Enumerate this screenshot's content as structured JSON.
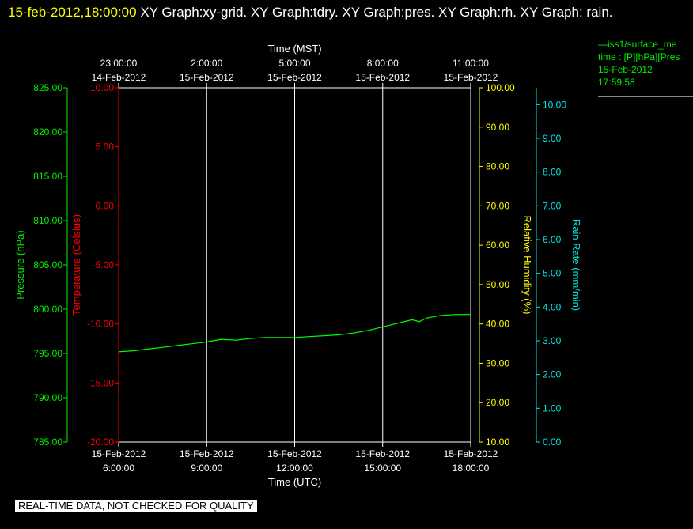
{
  "header": {
    "timestamp": "15-feb-2012,18:00:00",
    "graphs": "XY Graph:xy-grid.  XY Graph:tdry.  XY Graph:pres.  XY Graph:rh.  XY Graph: rain."
  },
  "legend": {
    "lines": [
      "—iss1/surface_me",
      "time : [P][hPa][Pres",
      "15-Feb-2012",
      "17:59:58"
    ]
  },
  "notice": "REAL-TIME DATA, NOT CHECKED FOR QUALITY",
  "colors": {
    "pressure": "#00ee00",
    "temperature": "#ff0000",
    "humidity": "#ffff00",
    "rain": "#00e5e5",
    "grid": "#ffffff",
    "series": "#00ff00"
  },
  "chart_data": {
    "type": "line",
    "grid": true,
    "x_bottom": {
      "label": "Time (UTC)",
      "ticks": [
        {
          "time": "2012-02-15T06:00",
          "date": "15-Feb-2012",
          "clock": "6:00:00"
        },
        {
          "time": "2012-02-15T09:00",
          "date": "15-Feb-2012",
          "clock": "9:00:00"
        },
        {
          "time": "2012-02-15T12:00",
          "date": "15-Feb-2012",
          "clock": "12:00:00"
        },
        {
          "time": "2012-02-15T15:00",
          "date": "15-Feb-2012",
          "clock": "15:00:00"
        },
        {
          "time": "2012-02-15T18:00",
          "date": "15-Feb-2012",
          "clock": "18:00:00"
        }
      ]
    },
    "x_top": {
      "label": "Time (MST)",
      "ticks": [
        {
          "clock": "23:00:00",
          "date": "14-Feb-2012"
        },
        {
          "clock": "2:00:00",
          "date": "15-Feb-2012"
        },
        {
          "clock": "5:00:00",
          "date": "15-Feb-2012"
        },
        {
          "clock": "8:00:00",
          "date": "15-Feb-2012"
        },
        {
          "clock": "11:00:00",
          "date": "15-Feb-2012"
        }
      ]
    },
    "xlim": [
      "2012-02-15T06:00",
      "2012-02-15T18:00"
    ],
    "y_axes": {
      "pressure": {
        "label": "Pressure (hPa)",
        "ylim": [
          785,
          825
        ],
        "ticks": [
          "825.00",
          "820.00",
          "815.00",
          "810.00",
          "805.00",
          "800.00",
          "795.00",
          "790.00",
          "785.00"
        ]
      },
      "temperature": {
        "label": "Temperature (Celsius)",
        "ylim": [
          -20,
          10
        ],
        "ticks": [
          "10.00",
          "5.00",
          "0.00",
          "-5.00",
          "-10.00",
          "-15.00",
          "-20.00"
        ]
      },
      "humidity": {
        "label": "Relative Humidity (%)",
        "ylim": [
          10,
          100
        ],
        "ticks": [
          "100.00",
          "90.00",
          "80.00",
          "70.00",
          "60.00",
          "50.00",
          "40.00",
          "30.00",
          "20.00",
          "10.00"
        ]
      },
      "rain": {
        "label": "Rain Rate (mm/min)",
        "ylim": [
          0,
          10.5
        ],
        "ticks": [
          "10.00",
          "9.00",
          "8.00",
          "7.00",
          "6.00",
          "5.00",
          "4.00",
          "3.00",
          "2.00",
          "1.00",
          "0.00"
        ]
      }
    },
    "series": [
      {
        "axis": "pressure",
        "x": [
          "2012-02-15T06:00",
          "2012-02-15T06:30",
          "2012-02-15T07:00",
          "2012-02-15T07:30",
          "2012-02-15T08:00",
          "2012-02-15T08:30",
          "2012-02-15T09:00",
          "2012-02-15T09:30",
          "2012-02-15T10:00",
          "2012-02-15T10:30",
          "2012-02-15T11:00",
          "2012-02-15T11:30",
          "2012-02-15T12:00",
          "2012-02-15T12:30",
          "2012-02-15T13:00",
          "2012-02-15T13:30",
          "2012-02-15T14:00",
          "2012-02-15T14:30",
          "2012-02-15T15:00",
          "2012-02-15T15:30",
          "2012-02-15T16:00",
          "2012-02-15T16:15",
          "2012-02-15T16:30",
          "2012-02-15T17:00",
          "2012-02-15T17:30",
          "2012-02-15T18:00"
        ],
        "values": [
          795.2,
          795.3,
          795.5,
          795.7,
          795.9,
          796.1,
          796.3,
          796.6,
          796.5,
          796.7,
          796.8,
          796.8,
          796.8,
          796.9,
          797.0,
          797.1,
          797.3,
          797.6,
          798.0,
          798.4,
          798.8,
          798.6,
          799.0,
          799.3,
          799.4,
          799.4
        ]
      }
    ]
  }
}
